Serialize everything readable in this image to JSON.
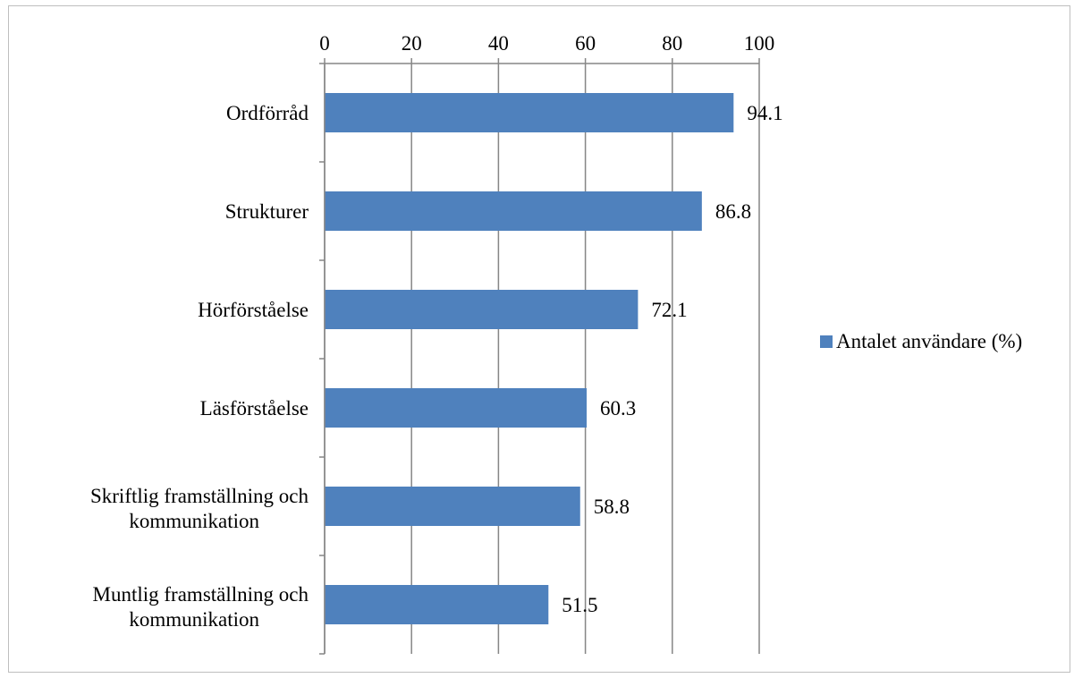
{
  "chart_data": {
    "type": "bar",
    "orientation": "horizontal",
    "categories": [
      "Ordförråd",
      "Strukturer",
      "Hörförståelse",
      "Läsförståelse",
      "Skriftlig framställning och kommunikation",
      "Muntlig framställning och kommunikation"
    ],
    "series": [
      {
        "name": "Antalet användare (%)",
        "values": [
          94.1,
          86.8,
          72.1,
          60.3,
          58.8,
          51.5
        ],
        "color": "#4f81bd"
      }
    ],
    "data_labels": [
      "94.1",
      "86.8",
      "72.1",
      "60.3",
      "58.8",
      "51.5"
    ],
    "xlim": [
      0,
      100
    ],
    "x_ticks": [
      0,
      20,
      40,
      60,
      80,
      100
    ],
    "x_tick_labels": [
      "0",
      "20",
      "40",
      "60",
      "80",
      "100"
    ],
    "x_axis_position": "top",
    "grid": true,
    "legend_position": "right",
    "title": "",
    "xlabel": "",
    "ylabel": ""
  },
  "colors": {
    "bar": "#4f81bd",
    "grid": "#868686",
    "axis": "#868686",
    "frame": "#bfbfbf"
  }
}
